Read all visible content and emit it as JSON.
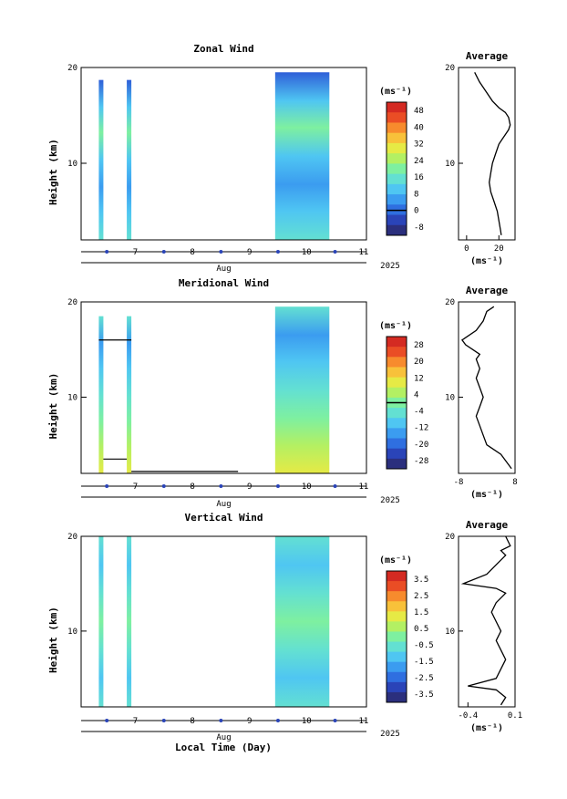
{
  "figure": {
    "xlabel": "Local Time (Day)",
    "month_label": "Aug",
    "year_label": "2025"
  },
  "chart_data": [
    {
      "type": "heatmap",
      "title": "Zonal Wind",
      "ylabel": "Height (km)",
      "ylim": [
        2,
        20
      ],
      "yticks": [
        20,
        10
      ],
      "xlim": [
        6.05,
        11.05
      ],
      "xticks": [
        7,
        8,
        9,
        10,
        11
      ],
      "colorbar_unit": "(ms⁻¹)",
      "colorbar_ticks": [
        48,
        40,
        32,
        24,
        16,
        8,
        0,
        -8
      ],
      "colorbar_range": [
        -12,
        52
      ],
      "zero_line_value": 0,
      "segments": [
        {
          "x0": 6.36,
          "x1": 6.44,
          "ytop": 18.7
        },
        {
          "x0": 6.85,
          "x1": 6.93,
          "ytop": 18.7
        },
        {
          "x0": 9.45,
          "x1": 10.4,
          "ytop": 19.5
        }
      ],
      "profile": {
        "title": "Average",
        "xlabel": "(ms⁻¹)",
        "xlim": [
          -5,
          30
        ],
        "xticks": [
          0,
          20
        ],
        "ylim": [
          2,
          20
        ],
        "yticks": [
          20,
          10
        ],
        "x": [
          5,
          8,
          12,
          16,
          20,
          24,
          26,
          27,
          26,
          24,
          22,
          20,
          18,
          16,
          15,
          14,
          15,
          17,
          19,
          20,
          20.5,
          21,
          21.5
        ],
        "y": [
          19.5,
          18.5,
          17.5,
          16.5,
          15.8,
          15.3,
          14.8,
          14.0,
          13.5,
          13.0,
          12.5,
          12.0,
          11.0,
          10.0,
          9.0,
          8.0,
          7.0,
          6.0,
          5.0,
          4.0,
          3.5,
          3.0,
          2.5
        ]
      }
    },
    {
      "type": "heatmap",
      "title": "Meridional Wind",
      "ylabel": "Height (km)",
      "ylim": [
        2,
        20
      ],
      "yticks": [
        20,
        10
      ],
      "xlim": [
        6.05,
        11.05
      ],
      "xticks": [
        7,
        8,
        9,
        10,
        11
      ],
      "colorbar_unit": "(ms⁻¹)",
      "colorbar_ticks": [
        28,
        20,
        12,
        4,
        -4,
        -12,
        -20,
        -28
      ],
      "colorbar_range": [
        -32,
        32
      ],
      "zero_line_value": 0,
      "segments": [
        {
          "x0": 6.36,
          "x1": 6.44,
          "ytop": 18.5
        },
        {
          "x0": 6.85,
          "x1": 6.93,
          "ytop": 18.5
        },
        {
          "x0": 9.45,
          "x1": 10.4,
          "ytop": 19.5
        }
      ],
      "profile": {
        "title": "Average",
        "xlabel": "(ms⁻¹)",
        "xlim": [
          -8,
          8
        ],
        "xticks": [
          -8,
          8
        ],
        "ylim": [
          2,
          20
        ],
        "yticks": [
          20,
          10
        ],
        "x": [
          2,
          0,
          -1,
          -3,
          -7,
          -6,
          -4,
          -2,
          -3,
          -2,
          -3,
          -2,
          -1,
          -2,
          -3,
          -2,
          -1,
          0,
          2,
          4,
          6,
          7
        ],
        "y": [
          19.5,
          19.0,
          18.0,
          17.0,
          16.0,
          15.5,
          15.0,
          14.5,
          14.0,
          13.0,
          12.0,
          11.0,
          10.0,
          9.0,
          8.0,
          7.0,
          6.0,
          5.0,
          4.5,
          4.0,
          3.0,
          2.5
        ]
      }
    },
    {
      "type": "heatmap",
      "title": "Vertical Wind",
      "ylabel": "Height (km)",
      "ylim": [
        2,
        20
      ],
      "yticks": [
        20,
        10
      ],
      "xlim": [
        6.05,
        11.05
      ],
      "xticks": [
        7,
        8,
        9,
        10,
        11
      ],
      "colorbar_unit": "(ms⁻¹)",
      "colorbar_ticks": [
        3.5,
        2.5,
        1.5,
        0.5,
        -0.5,
        -1.5,
        -2.5,
        -3.5
      ],
      "colorbar_range": [
        -4,
        4
      ],
      "zero_line_value": null,
      "segments": [
        {
          "x0": 6.36,
          "x1": 6.44,
          "ytop": 20
        },
        {
          "x0": 6.85,
          "x1": 6.93,
          "ytop": 20
        },
        {
          "x0": 9.45,
          "x1": 10.4,
          "ytop": 20
        }
      ],
      "profile": {
        "title": "Average",
        "xlabel": "(ms⁻¹)",
        "xlim": [
          -0.5,
          0.1
        ],
        "xticks": [
          -0.4,
          0.1
        ],
        "ylim": [
          2,
          20
        ],
        "yticks": [
          20,
          10
        ],
        "x": [
          0.0,
          0.05,
          -0.05,
          0.0,
          -0.1,
          -0.2,
          -0.45,
          -0.1,
          0.0,
          -0.1,
          -0.15,
          -0.1,
          -0.05,
          -0.1,
          -0.05,
          0.0,
          -0.05,
          -0.1,
          -0.4,
          -0.1,
          0.0,
          -0.05
        ],
        "y": [
          20.0,
          19.0,
          18.5,
          18.0,
          17.0,
          16.0,
          15.0,
          14.5,
          14.0,
          13.0,
          12.0,
          11.0,
          10.0,
          9.0,
          8.0,
          7.0,
          6.0,
          5.0,
          4.2,
          3.8,
          3.0,
          2.2
        ]
      }
    }
  ]
}
